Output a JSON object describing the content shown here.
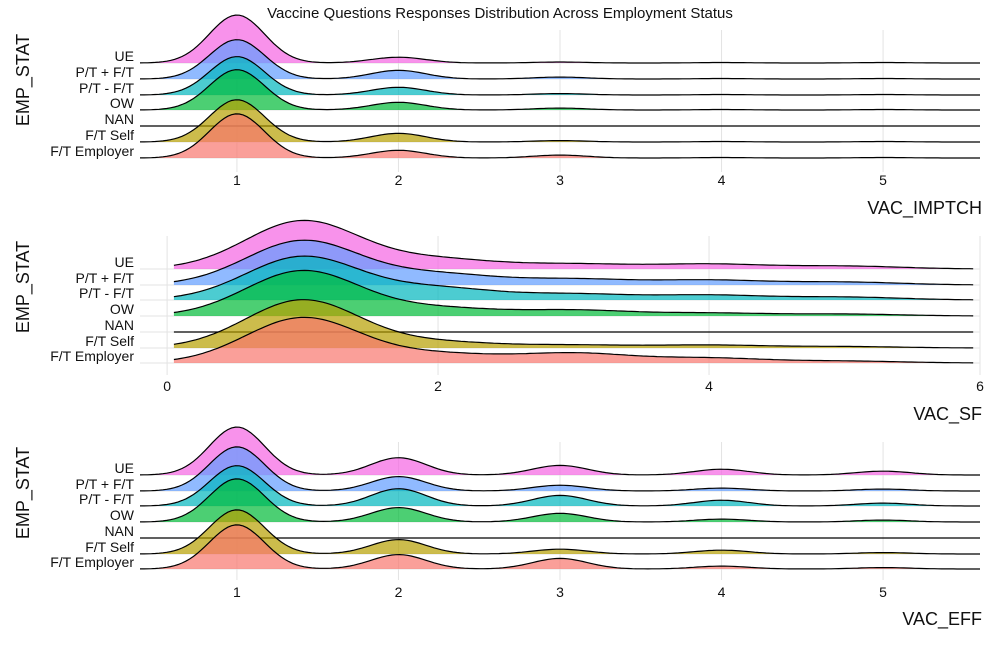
{
  "title": "Vaccine Questions Responses Distribution Across Employment Status",
  "groups": [
    "UE",
    "P/T + F/T",
    "P/T - F/T",
    "OW",
    "NAN",
    "F/T Self",
    "F/T Employer"
  ],
  "colors": {
    "UE": "#F564E3",
    "P/T + F/T": "#619CFF",
    "P/T - F/T": "#00B6BD",
    "OW": "#00BA38",
    "NAN": "#00C19F",
    "F/T Self": "#B79F00",
    "F/T Employer": "#F8766D"
  },
  "chart_data": [
    {
      "type": "ridgeline",
      "xlabel": "VAC_IMPTCH",
      "ylabel": "EMP_STAT",
      "xlim": [
        0.4,
        5.6
      ],
      "xticks": [
        1,
        2,
        3,
        4,
        5
      ],
      "x_range": [
        0.4,
        5.6
      ],
      "bandwidth": 0.17,
      "grid": true,
      "series": [
        {
          "name": "UE",
          "peaks": [
            [
              1,
              1.0
            ],
            [
              2,
              0.12
            ],
            [
              3,
              0.02
            ],
            [
              4,
              0.01
            ],
            [
              5,
              0.01
            ]
          ]
        },
        {
          "name": "P/T + F/T",
          "peaks": [
            [
              1,
              0.82
            ],
            [
              2,
              0.18
            ],
            [
              3,
              0.04
            ],
            [
              4,
              0.01
            ],
            [
              5,
              0.01
            ]
          ]
        },
        {
          "name": "P/T - F/T",
          "peaks": [
            [
              1,
              0.8
            ],
            [
              2,
              0.16
            ],
            [
              3,
              0.03
            ],
            [
              4,
              0.01
            ],
            [
              5,
              0.01
            ]
          ]
        },
        {
          "name": "OW",
          "peaks": [
            [
              1,
              0.84
            ],
            [
              2,
              0.16
            ],
            [
              3,
              0.04
            ],
            [
              4,
              0.01
            ],
            [
              5,
              0.01
            ]
          ]
        },
        {
          "name": "NAN",
          "peaks": []
        },
        {
          "name": "F/T Self",
          "peaks": [
            [
              1,
              0.88
            ],
            [
              2,
              0.18
            ],
            [
              3,
              0.03
            ],
            [
              4,
              0.01
            ],
            [
              5,
              0.01
            ]
          ]
        },
        {
          "name": "F/T Employer",
          "peaks": [
            [
              1,
              0.92
            ],
            [
              2,
              0.16
            ],
            [
              3,
              0.06
            ],
            [
              4,
              0.01
            ],
            [
              5,
              0.01
            ]
          ]
        }
      ]
    },
    {
      "type": "ridgeline",
      "xlabel": "VAC_SF",
      "ylabel": "EMP_STAT",
      "xlim": [
        -0.2,
        6.0
      ],
      "xticks": [
        0,
        2,
        4,
        6
      ],
      "x_range": [
        0.05,
        5.95
      ],
      "bandwidth": 0.42,
      "grid": true,
      "series": [
        {
          "name": "UE",
          "peaks": [
            [
              1,
              1.0
            ],
            [
              2,
              0.2
            ],
            [
              3,
              0.1
            ],
            [
              4,
              0.1
            ],
            [
              5,
              0.06
            ]
          ]
        },
        {
          "name": "P/T + F/T",
          "peaks": [
            [
              1,
              0.92
            ],
            [
              2,
              0.22
            ],
            [
              3,
              0.12
            ],
            [
              4,
              0.1
            ],
            [
              5,
              0.06
            ]
          ]
        },
        {
          "name": "P/T - F/T",
          "peaks": [
            [
              1,
              0.9
            ],
            [
              2,
              0.24
            ],
            [
              3,
              0.12
            ],
            [
              4,
              0.1
            ],
            [
              5,
              0.06
            ]
          ]
        },
        {
          "name": "OW",
          "peaks": [
            [
              1,
              0.94
            ],
            [
              2,
              0.16
            ],
            [
              3,
              0.12
            ],
            [
              4,
              0.06
            ],
            [
              5,
              0.04
            ]
          ]
        },
        {
          "name": "NAN",
          "peaks": []
        },
        {
          "name": "F/T Self",
          "peaks": [
            [
              1,
              1.0
            ],
            [
              2,
              0.12
            ],
            [
              3,
              0.06
            ],
            [
              4,
              0.06
            ],
            [
              5,
              0.03
            ]
          ]
        },
        {
          "name": "F/T Employer",
          "peaks": [
            [
              1,
              0.94
            ],
            [
              2,
              0.18
            ],
            [
              3,
              0.2
            ],
            [
              4,
              0.1
            ],
            [
              5,
              0.04
            ]
          ]
        }
      ]
    },
    {
      "type": "ridgeline",
      "xlabel": "VAC_EFF",
      "ylabel": "EMP_STAT",
      "xlim": [
        0.4,
        5.6
      ],
      "xticks": [
        1,
        2,
        3,
        4,
        5
      ],
      "x_range": [
        0.4,
        5.6
      ],
      "bandwidth": 0.17,
      "grid": true,
      "series": [
        {
          "name": "UE",
          "peaks": [
            [
              1,
              1.0
            ],
            [
              2,
              0.36
            ],
            [
              3,
              0.2
            ],
            [
              4,
              0.12
            ],
            [
              5,
              0.08
            ]
          ]
        },
        {
          "name": "P/T + F/T",
          "peaks": [
            [
              1,
              0.92
            ],
            [
              2,
              0.3
            ],
            [
              3,
              0.12
            ],
            [
              4,
              0.06
            ],
            [
              5,
              0.04
            ]
          ]
        },
        {
          "name": "P/T - F/T",
          "peaks": [
            [
              1,
              0.84
            ],
            [
              2,
              0.36
            ],
            [
              3,
              0.22
            ],
            [
              4,
              0.12
            ],
            [
              5,
              0.06
            ]
          ]
        },
        {
          "name": "OW",
          "peaks": [
            [
              1,
              0.9
            ],
            [
              2,
              0.3
            ],
            [
              3,
              0.18
            ],
            [
              4,
              0.06
            ],
            [
              5,
              0.04
            ]
          ]
        },
        {
          "name": "NAN",
          "peaks": []
        },
        {
          "name": "F/T Self",
          "peaks": [
            [
              1,
              0.92
            ],
            [
              2,
              0.3
            ],
            [
              3,
              0.1
            ],
            [
              4,
              0.08
            ],
            [
              5,
              0.03
            ]
          ]
        },
        {
          "name": "F/T Employer",
          "peaks": [
            [
              1,
              0.92
            ],
            [
              2,
              0.3
            ],
            [
              3,
              0.22
            ],
            [
              4,
              0.06
            ],
            [
              5,
              0.03
            ]
          ]
        }
      ]
    }
  ]
}
